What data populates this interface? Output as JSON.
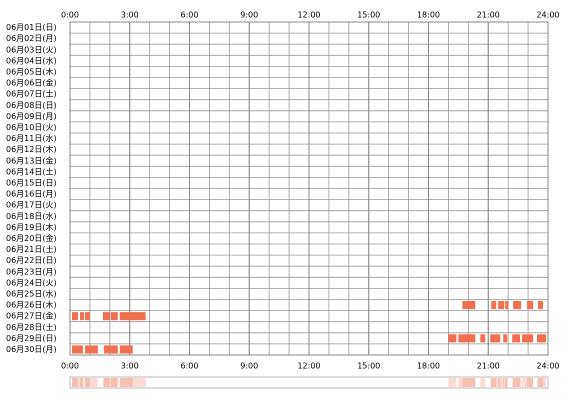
{
  "chart_data": {
    "type": "timeline",
    "color": "#f07050",
    "xlim": [
      0,
      24
    ],
    "xticks": [
      {
        "value": 0,
        "label": "0:00"
      },
      {
        "value": 3,
        "label": "3:00"
      },
      {
        "value": 6,
        "label": "6:00"
      },
      {
        "value": 9,
        "label": "9:00"
      },
      {
        "value": 12,
        "label": "12:00"
      },
      {
        "value": 15,
        "label": "15:00"
      },
      {
        "value": 18,
        "label": "18:00"
      },
      {
        "value": 21,
        "label": "21:00"
      },
      {
        "value": 24,
        "label": "24:00"
      }
    ],
    "categories": [
      "06月01日(日)",
      "06月02日(月)",
      "06月03日(火)",
      "06月04日(水)",
      "06月05日(木)",
      "06月06日(金)",
      "06月07日(土)",
      "06月08日(日)",
      "06月09日(月)",
      "06月10日(火)",
      "06月11日(水)",
      "06月12日(木)",
      "06月13日(金)",
      "06月14日(土)",
      "06月15日(日)",
      "06月16日(月)",
      "06月17日(火)",
      "06月18日(水)",
      "06月19日(木)",
      "06月20日(金)",
      "06月21日(土)",
      "06月22日(日)",
      "06月23日(月)",
      "06月24日(火)",
      "06月25日(水)",
      "06月26日(木)",
      "06月27日(金)",
      "06月28日(土)",
      "06月29日(日)",
      "06月30日(月)"
    ],
    "values": [
      [],
      [],
      [],
      [],
      [],
      [],
      [],
      [],
      [],
      [],
      [],
      [],
      [],
      [],
      [],
      [],
      [],
      [],
      [],
      [],
      [],
      [],
      [],
      [],
      [],
      [
        [
          19.7,
          20.35
        ],
        [
          21.15,
          21.4
        ],
        [
          21.5,
          21.8
        ],
        [
          21.85,
          22.0
        ],
        [
          22.25,
          22.65
        ],
        [
          22.95,
          23.25
        ],
        [
          23.5,
          23.75
        ]
      ],
      [
        [
          0.1,
          0.4
        ],
        [
          0.5,
          0.7
        ],
        [
          0.75,
          1.0
        ],
        [
          1.65,
          2.0
        ],
        [
          2.05,
          2.4
        ],
        [
          2.5,
          3.8
        ]
      ],
      [],
      [
        [
          19.0,
          19.4
        ],
        [
          19.5,
          20.35
        ],
        [
          20.6,
          20.85
        ],
        [
          21.1,
          21.6
        ],
        [
          21.75,
          21.95
        ],
        [
          22.2,
          22.6
        ],
        [
          22.7,
          23.25
        ],
        [
          23.45,
          23.9
        ]
      ],
      [
        [
          0.1,
          0.65
        ],
        [
          0.75,
          1.4
        ],
        [
          1.7,
          2.4
        ],
        [
          2.5,
          3.15
        ]
      ]
    ]
  }
}
